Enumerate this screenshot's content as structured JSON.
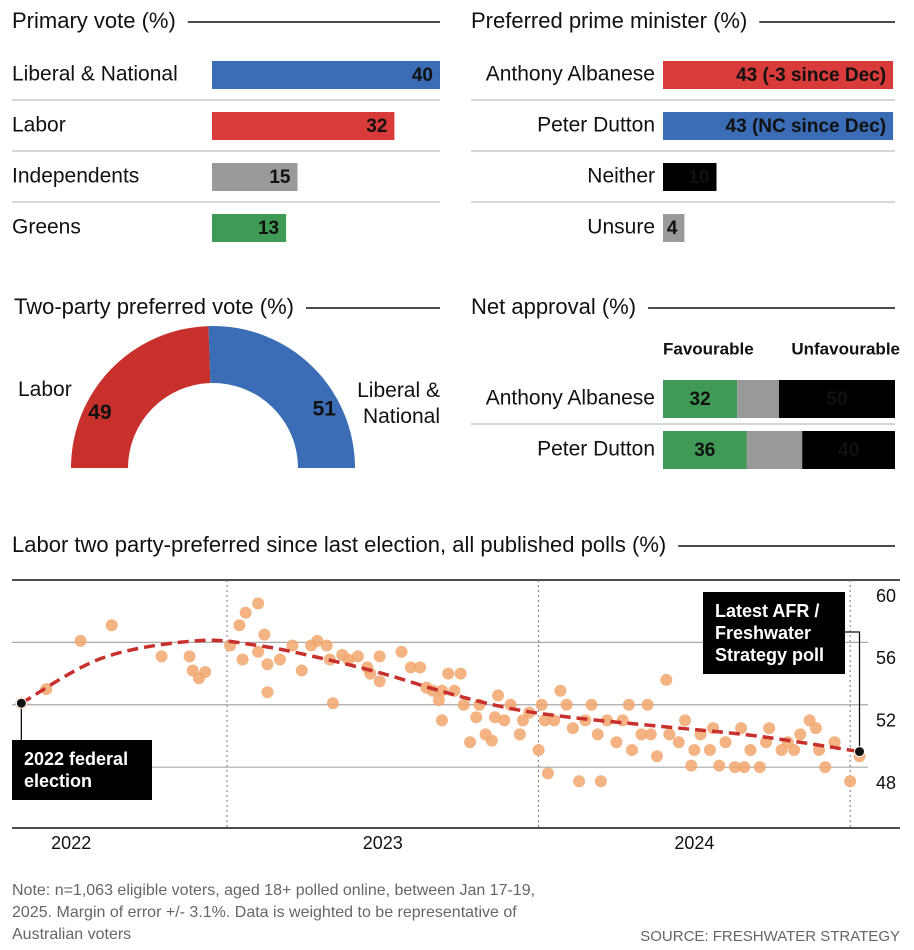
{
  "chart_data": [
    {
      "type": "hbar",
      "title": "Primary vote (%)",
      "categories": [
        "Liberal & National",
        "Labor",
        "Independents",
        "Greens"
      ],
      "values": [
        40,
        32,
        15,
        13
      ],
      "colors": [
        "#3a6db5",
        "#d93a3a",
        "#9a9a9a",
        "#3f9a55"
      ]
    },
    {
      "type": "hbar",
      "title": "Preferred prime minister (%)",
      "categories": [
        "Anthony Albanese",
        "Peter Dutton",
        "Neither",
        "Unsure"
      ],
      "values": [
        43,
        43,
        10,
        4
      ],
      "value_labels": [
        "43 (-3 since Dec)",
        "43 (NC since Dec)",
        "10",
        "4"
      ],
      "colors": [
        "#d93a3a",
        "#3a6db5",
        "#000000",
        "#9a9a9a"
      ]
    },
    {
      "type": "pie",
      "title": "Two-party preferred vote (%)",
      "categories": [
        "Labor",
        "Liberal & National"
      ],
      "values": [
        49,
        51
      ],
      "colors": [
        "#c8302c",
        "#3a6db5"
      ]
    },
    {
      "type": "stacked_hbar",
      "title": "Net approval (%)",
      "categories": [
        "Anthony Albanese",
        "Peter Dutton"
      ],
      "series": [
        {
          "name": "Favourable",
          "color": "#3f9a55",
          "values": [
            32,
            36
          ]
        },
        {
          "color": "#999999",
          "values": [
            18,
            24
          ]
        },
        {
          "name": "Unfavourable",
          "color": "#000000",
          "values": [
            50,
            40
          ]
        }
      ]
    },
    {
      "type": "scatter",
      "title": "Labor two party-preferred since last election, all published polls (%)",
      "color": "#f2a66d",
      "x": [
        2022.34,
        2022.42,
        2022.53,
        2022.63,
        2022.79,
        2022.88,
        2022.89,
        2022.91,
        2022.93,
        2023.01,
        2023.04,
        2023.06,
        2023.1,
        2023.12,
        2023.1,
        2023.05,
        2023.13,
        2023.13,
        2023.17,
        2023.21,
        2023.24,
        2023.27,
        2023.29,
        2023.32,
        2023.33,
        2023.34,
        2023.37,
        2023.39,
        2023.42,
        2023.45,
        2023.46,
        2023.49,
        2023.49,
        2023.56,
        2023.59,
        2023.62,
        2023.64,
        2023.66,
        2023.68,
        2023.69,
        2023.69,
        2023.71,
        2023.73,
        2023.75,
        2023.76,
        2023.78,
        2023.8,
        2023.81,
        2023.83,
        2023.85,
        2023.86,
        2023.87,
        2023.89,
        2023.91,
        2023.94,
        2023.95,
        2023.97,
        2024.0,
        2024.01,
        2024.02,
        2024.03,
        2024.05,
        2024.07,
        2024.09,
        2024.11,
        2024.13,
        2024.15,
        2024.17,
        2024.19,
        2024.2,
        2024.22,
        2024.25,
        2024.27,
        2024.29,
        2024.3,
        2024.33,
        2024.35,
        2024.36,
        2024.38,
        2024.41,
        2024.42,
        2024.45,
        2024.47,
        2024.49,
        2024.5,
        2024.52,
        2024.55,
        2024.56,
        2024.58,
        2024.6,
        2024.63,
        2024.65,
        2024.66,
        2024.68,
        2024.71,
        2024.73,
        2024.74,
        2024.78,
        2024.8,
        2024.82,
        2024.84,
        2024.87,
        2024.89,
        2024.9,
        2024.92,
        2024.95,
        2025.0,
        2025.03
      ],
      "values": [
        52.1,
        53.0,
        56.1,
        57.1,
        55.1,
        55.1,
        54.2,
        53.7,
        54.1,
        55.8,
        57.1,
        57.9,
        58.5,
        56.5,
        55.4,
        54.9,
        54.6,
        52.8,
        54.9,
        55.8,
        54.2,
        55.8,
        56.1,
        55.8,
        54.9,
        52.1,
        55.2,
        54.9,
        55.1,
        54.4,
        54.0,
        55.1,
        53.5,
        55.4,
        54.4,
        54.4,
        53.1,
        52.9,
        52.3,
        51.0,
        52.9,
        54.0,
        52.9,
        54.0,
        52.0,
        49.6,
        51.2,
        52.0,
        50.1,
        49.7,
        51.2,
        52.6,
        51.0,
        52.0,
        50.1,
        51.0,
        51.5,
        49.1,
        52.0,
        51.0,
        47.6,
        51.0,
        52.9,
        52.0,
        50.5,
        47.1,
        51.0,
        52.0,
        50.1,
        47.1,
        51.0,
        49.6,
        51.0,
        52.0,
        49.1,
        50.1,
        52.0,
        50.1,
        48.7,
        53.6,
        50.1,
        49.6,
        51.0,
        48.1,
        49.1,
        50.1,
        49.1,
        50.5,
        48.1,
        49.6,
        48.0,
        50.5,
        48.0,
        49.1,
        48.0,
        49.6,
        50.5,
        49.1,
        49.6,
        49.1,
        50.1,
        51.0,
        50.5,
        49.1,
        48.0,
        49.6,
        47.1,
        48.7
      ],
      "trend": {
        "color": "#c8302c",
        "x": [
          2022.34,
          2022.6,
          2022.9,
          2023.1,
          2023.3,
          2023.5,
          2023.7,
          2023.9,
          2024.1,
          2024.4,
          2024.7,
          2025.03
        ],
        "values": [
          52.1,
          55.0,
          56.1,
          55.8,
          55.0,
          54.0,
          52.8,
          51.8,
          51.2,
          50.6,
          50.0,
          49
        ]
      },
      "annotations": [
        {
          "text": "2022 federal election",
          "x": 2022.34,
          "y": 52.1
        },
        {
          "text": "Latest AFR / Freshwater Strategy poll",
          "x": 2025.03,
          "y": 49
        }
      ],
      "xlim": [
        2022.31,
        2025.16
      ],
      "ylim": [
        44.1,
        60
      ],
      "xticks": [
        {
          "value": 2022.5,
          "label": "2022"
        },
        {
          "value": 2023.5,
          "label": "2023"
        },
        {
          "value": 2024.5,
          "label": "2024"
        }
      ],
      "xgrid": [
        2023,
        2024,
        2025
      ],
      "yticks": [
        60,
        56,
        52,
        48
      ],
      "grid": true
    }
  ],
  "note": "Note: n=1,063 eligible voters, aged 18+ polled online, between Jan 17-19, 2025. Margin of error +/- 3.1%. Data is weighted to be representative of Australian voters",
  "source": "SOURCE: FRESHWATER STRATEGY"
}
